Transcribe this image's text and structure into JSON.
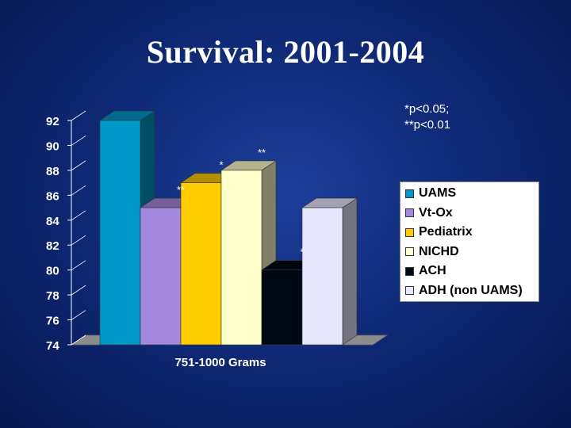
{
  "slide": {
    "title": "Survival: 2001-2004"
  },
  "footnote": {
    "line1": "*p<0.05;",
    "line2": "**p<0.01"
  },
  "chart_data": {
    "type": "bar",
    "categories": [
      "751-1000 Grams"
    ],
    "xlabel": "751-1000 Grams",
    "ylabel": "",
    "ylim": [
      74,
      92
    ],
    "yticks": [
      74,
      76,
      78,
      80,
      82,
      84,
      86,
      88,
      90,
      92
    ],
    "grid": false,
    "legend_position": "right",
    "series": [
      {
        "name": "UAMS",
        "values": [
          92
        ],
        "color": "#0099cc",
        "annotation": ""
      },
      {
        "name": "Vt-Ox",
        "values": [
          85
        ],
        "color": "#a488dd",
        "annotation": "**"
      },
      {
        "name": "Pediatrix",
        "values": [
          87
        ],
        "color": "#ffcc00",
        "annotation": "*"
      },
      {
        "name": "NICHD",
        "values": [
          88
        ],
        "color": "#ffffcc",
        "annotation": "**"
      },
      {
        "name": "ACH",
        "values": [
          80
        ],
        "color": "#000814",
        "annotation": "*"
      },
      {
        "name": "ADH (non UAMS)",
        "values": [
          85
        ],
        "color": "#e6e6ff",
        "annotation": ""
      }
    ]
  }
}
